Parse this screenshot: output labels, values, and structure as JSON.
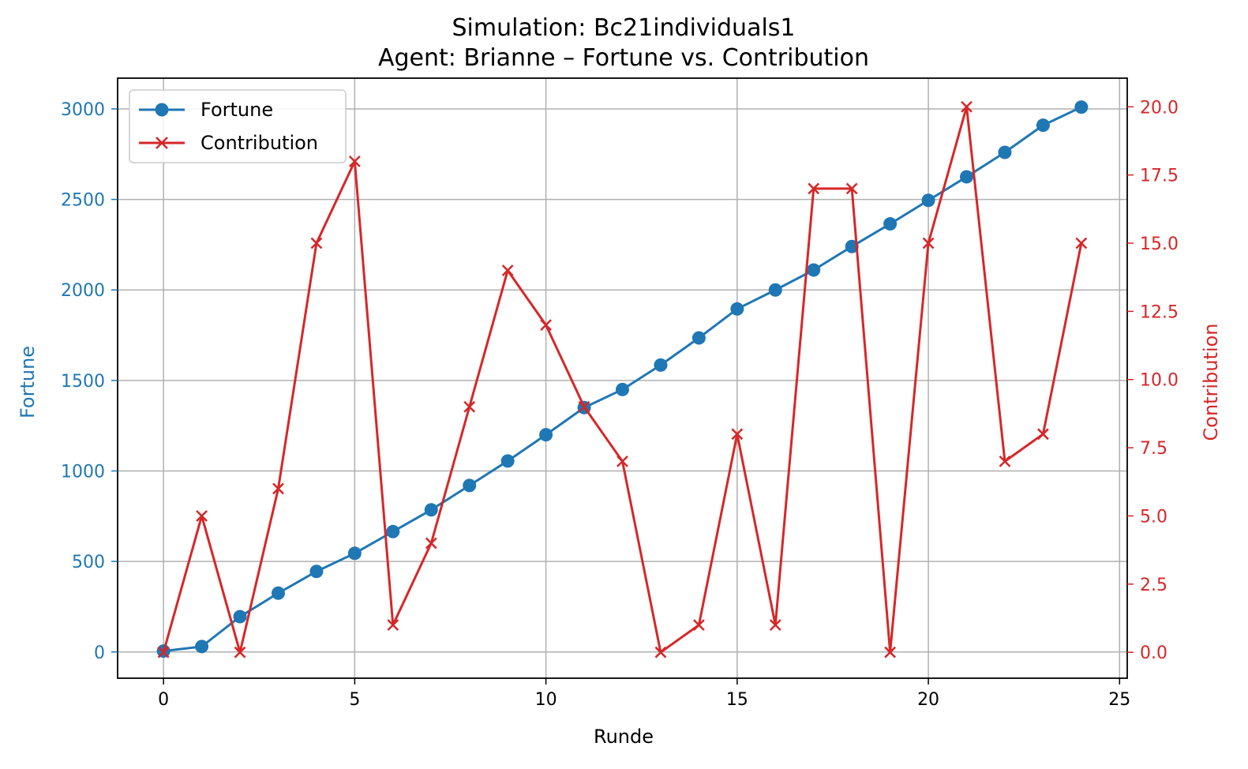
{
  "chart_data": {
    "type": "line",
    "title": "Simulation: Bc21individuals1",
    "subtitle": "Agent: Brianne – Fortune vs. Contribution",
    "xlabel": "Runde",
    "ylabel_left": "Fortune",
    "ylabel_right": "Contribution",
    "x": [
      0,
      1,
      2,
      3,
      4,
      5,
      6,
      7,
      8,
      9,
      10,
      11,
      12,
      13,
      14,
      15,
      16,
      17,
      18,
      19,
      20,
      21,
      22,
      23,
      24
    ],
    "xlim": [
      -1.2,
      25.2
    ],
    "x_ticks": [
      0,
      5,
      10,
      15,
      20,
      25
    ],
    "ylim_left": [
      -145,
      3170
    ],
    "y_ticks_left": [
      0,
      500,
      1000,
      1500,
      2000,
      2500,
      3000
    ],
    "ylim_right": [
      -0.95,
      21.05
    ],
    "y_ticks_right": [
      "0.0",
      "2.5",
      "5.0",
      "7.5",
      "10.0",
      "12.5",
      "15.0",
      "17.5",
      "20.0"
    ],
    "grid": true,
    "legend_position": "upper-left",
    "series": [
      {
        "name": "Fortune",
        "axis": "left",
        "color": "#1f77b4",
        "marker": "circle",
        "values": [
          5,
          30,
          195,
          325,
          445,
          545,
          665,
          785,
          920,
          1055,
          1200,
          1350,
          1450,
          1585,
          1735,
          1895,
          2000,
          2110,
          2240,
          2365,
          2495,
          2625,
          2760,
          2910,
          3010
        ]
      },
      {
        "name": "Contribution",
        "axis": "right",
        "color": "#d62728",
        "marker": "x",
        "values": [
          0,
          5,
          0,
          6,
          15,
          18,
          1,
          4,
          9,
          14,
          12,
          9,
          7,
          0,
          1,
          8,
          1,
          17,
          17,
          0,
          15,
          20,
          7,
          8,
          15
        ]
      }
    ]
  }
}
